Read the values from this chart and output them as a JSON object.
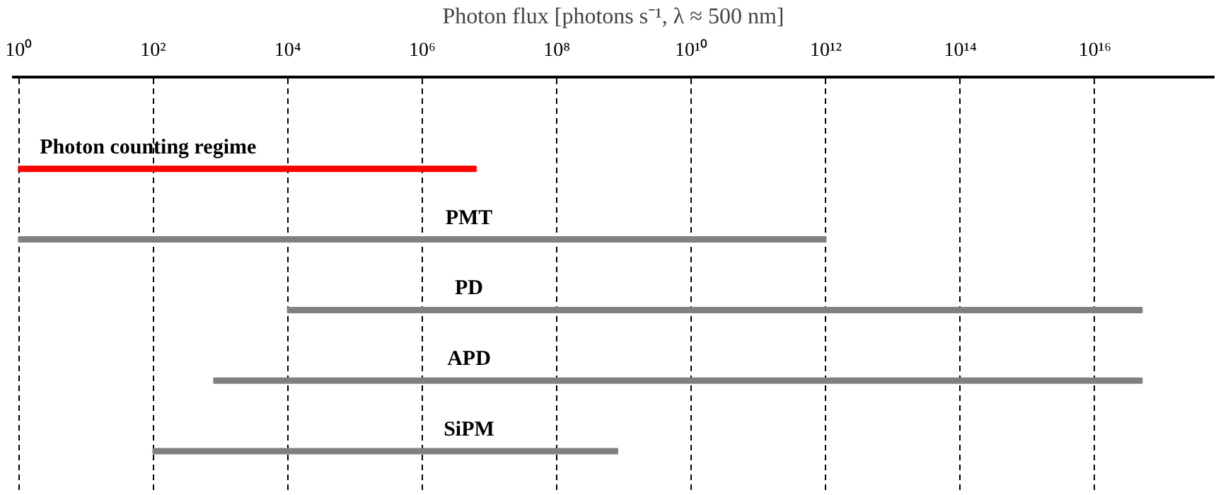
{
  "chart_data": {
    "type": "bar",
    "orientation": "horizontal",
    "log": "x",
    "xlabel": "Photon flux [photons s⁻¹, λ ≈ 500 nm]",
    "categories": [
      "Photon counting regime",
      "PMT",
      "PD",
      "APD",
      "SiPM"
    ],
    "base": [
      1,
      1,
      10000.0,
      800,
      100
    ],
    "values": [
      6300000.0,
      1000000000000.0,
      5e+16,
      5e+16,
      800000000.0
    ],
    "colors": [
      "#ff0000",
      "#808080",
      "#808080",
      "#808080",
      "#808080"
    ],
    "xlim": [
      0.8,
      6e+17
    ],
    "xticks": [
      {
        "value": 1,
        "label": "10⁰"
      },
      {
        "value": 100,
        "label": "10²"
      },
      {
        "value": 10000.0,
        "label": "10⁴"
      },
      {
        "value": 1000000.0,
        "label": "10⁶"
      },
      {
        "value": 100000000.0,
        "label": "10⁸"
      },
      {
        "value": 10000000000.0,
        "label": "10¹⁰"
      },
      {
        "value": 1000000000000.0,
        "label": "10¹²"
      },
      {
        "value": 100000000000000.0,
        "label": "10¹⁴"
      },
      {
        "value": 1e+16,
        "label": "10¹⁶"
      }
    ],
    "grid": "x",
    "line_style": "dashed"
  }
}
